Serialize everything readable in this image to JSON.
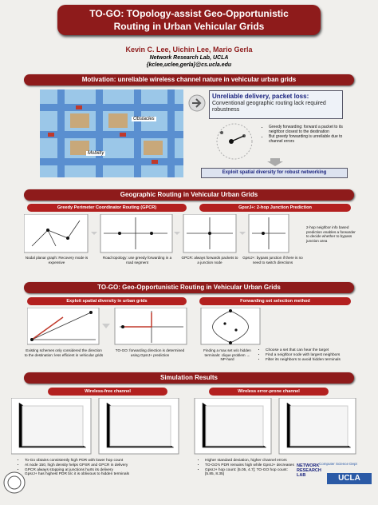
{
  "header": {
    "title_lines": [
      "TO-GO: TOpology-assist Geo-Opportunistic",
      "Routing in Urban Vehicular Grids"
    ],
    "authors": "Kevin C. Lee, Uichin Lee, Mario Gerla",
    "affiliation": "Network Research Lab, UCLA",
    "email": "{kclee,uclee,gerla}@cs.ucla.edu"
  },
  "motivation": {
    "title": "Motivation: unreliable wireless channel nature in vehicular urban grids",
    "image_labels": [
      "Obstacles",
      "Mobility"
    ],
    "box_title": "Unreliable delivery, packet loss:",
    "box_text": "Conventional geographic routing lack required robustness",
    "bullets": [
      "Greedy forwarding: forward a packet to its neighbor closest to the destination",
      "But greedy forwarding is unreliable due to channel errors"
    ],
    "conclusion": "Exploit spatial diversity for robust networking"
  },
  "geographic": {
    "title": "Geographic Routing in Vehicular Urban Grids",
    "subtitles": [
      "Greedy Perimeter Coordinator Routing (GPCR)",
      "GpsrJ+: 2-hop Junction Prediction"
    ],
    "captions": [
      "Nodal planar graph: Recovery mode is expensive",
      "Road topology: use greedy forwarding in a road segment",
      "GPCR: always forwards packets to a junction node",
      "GpsrJ+: bypass junction if there is no need to switch directions",
      "2-hop neighbor info based prediction enables a forwarder to decide whether to bypass junction area"
    ]
  },
  "togo": {
    "title": "TO-GO: Geo-Opportunistic Routing in Vehicular Urban Grids",
    "subtitles": [
      "Exploit spatial diversity in urban grids",
      "Forwarding set selection method"
    ],
    "captions": [
      "Existing schemes only considered the direction to the destination: less efficient in vehicular grids",
      "TO-GO: forwarding direction is determined using GpsrJ+ prediction",
      "Finding a max set w/o hidden terminals: clique problem → NP-hard"
    ],
    "bullets": [
      "Choose a set that can hear the target",
      "Find a neighbor node with largest neighbors",
      "Filter its neighbors to avoid hidden terminals"
    ]
  },
  "simulation": {
    "title": "Simulation Results",
    "subtitles": [
      "Wireless-free channel",
      "Wireless error-prone channel"
    ],
    "left_bullets": [
      "To-Go obtains consistently high PDR with lower hop count",
      "At node 150, high density helps GPSR and GPCR in delivery",
      "GPCR always stopping at junctions hurts its delivery",
      "GpsrJ+ has highest PDR b/c it is oblivious to hidden terminals"
    ],
    "right_bullets": [
      "Higher standard deviation, higher channel errors",
      "TO-GO's PDR remains high while GpsrJ+ decreases",
      "GpsrJ+ hop count: [5.05, 4.7]; TO-GO hop count: [5.85, 8.35]"
    ]
  },
  "logos": {
    "lab": "NETWORK RESEARCH LAB",
    "university": "UCLA",
    "department": "Computer Science Dept"
  }
}
